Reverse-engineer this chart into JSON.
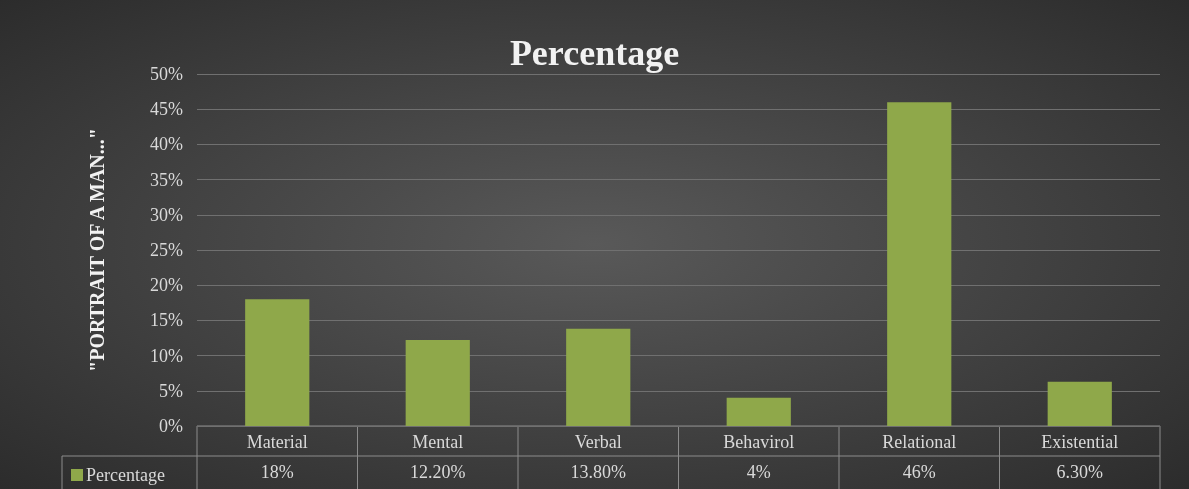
{
  "chart_data": {
    "type": "bar",
    "title": "Percentage",
    "ylabel": "\"PORTRAIT OF A MAN...\"",
    "categories": [
      "Material",
      "Mental",
      "Verbal",
      "Behavirol",
      "Relational",
      "Existential"
    ],
    "series": [
      {
        "name": "Percentage",
        "color": "#8fa84a",
        "values": [
          18,
          12.2,
          13.8,
          4,
          46,
          6.3
        ],
        "value_labels": [
          "18%",
          "12.20%",
          "13.80%",
          "4%",
          "46%",
          "6.30%"
        ]
      }
    ],
    "ylim": [
      0,
      50
    ],
    "yticks": [
      {
        "value": 0,
        "label": "0%"
      },
      {
        "value": 5,
        "label": "5%"
      },
      {
        "value": 10,
        "label": "10%"
      },
      {
        "value": 15,
        "label": "15%"
      },
      {
        "value": 20,
        "label": "20%"
      },
      {
        "value": 25,
        "label": "25%"
      },
      {
        "value": 30,
        "label": "30%"
      },
      {
        "value": 35,
        "label": "35%"
      },
      {
        "value": 40,
        "label": "40%"
      },
      {
        "value": 45,
        "label": "45%"
      },
      {
        "value": 50,
        "label": "50%"
      }
    ],
    "grid": "y",
    "legend": "bottom left"
  }
}
